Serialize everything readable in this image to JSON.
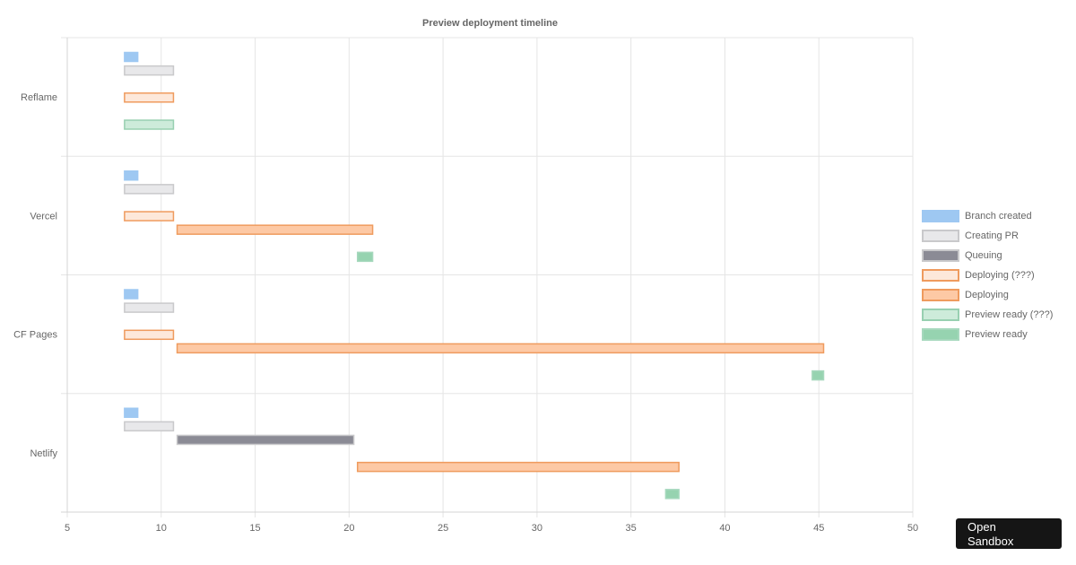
{
  "chart_data": {
    "type": "bar",
    "orientation": "horizontal-floating",
    "title": "Preview deployment timeline",
    "xlim": [
      5,
      50
    ],
    "x_ticks": [
      5,
      10,
      15,
      20,
      25,
      30,
      35,
      40,
      45,
      50
    ],
    "grid": true,
    "legend_position": "right",
    "categories": [
      "Reflame",
      "Vercel",
      "CF Pages",
      "Netlify"
    ],
    "series": [
      {
        "name": "Branch created",
        "fill": "#9ec8f2",
        "stroke": "#9ec8f2",
        "values": [
          [
            8,
            8.8
          ],
          [
            8,
            8.8
          ],
          [
            8,
            8.8
          ],
          [
            8,
            8.8
          ]
        ]
      },
      {
        "name": "Creating PR",
        "fill": "#e8e8ea",
        "stroke": "#c9c9cb",
        "values": [
          [
            8,
            10.7
          ],
          [
            8,
            10.7
          ],
          [
            8,
            10.7
          ],
          [
            8,
            10.7
          ]
        ]
      },
      {
        "name": "Queuing",
        "fill": "#8b8b95",
        "stroke": "#c9c9cb",
        "values": [
          null,
          null,
          null,
          [
            10.8,
            20.3
          ]
        ]
      },
      {
        "name": "Deploying (???)",
        "fill": "#fde8da",
        "stroke": "#ef9b5e",
        "values": [
          [
            8,
            10.7
          ],
          [
            8,
            10.7
          ],
          [
            8,
            10.7
          ],
          null
        ]
      },
      {
        "name": "Deploying",
        "fill": "#fdc9a5",
        "stroke": "#ef9b5e",
        "values": [
          null,
          [
            10.8,
            21.3
          ],
          [
            10.8,
            45.3
          ],
          [
            20.4,
            37.6
          ]
        ]
      },
      {
        "name": "Preview ready (???)",
        "fill": "#cdebda",
        "stroke": "#98d0b1",
        "values": [
          [
            8,
            10.7
          ],
          null,
          null,
          null
        ]
      },
      {
        "name": "Preview ready",
        "fill": "#96d3b0",
        "stroke": "#a6d8bd",
        "values": [
          null,
          [
            20.4,
            21.3
          ],
          [
            44.6,
            45.3
          ],
          [
            36.8,
            37.6
          ]
        ]
      }
    ]
  },
  "sandbox_button": {
    "label": "Open\nSandbox"
  }
}
